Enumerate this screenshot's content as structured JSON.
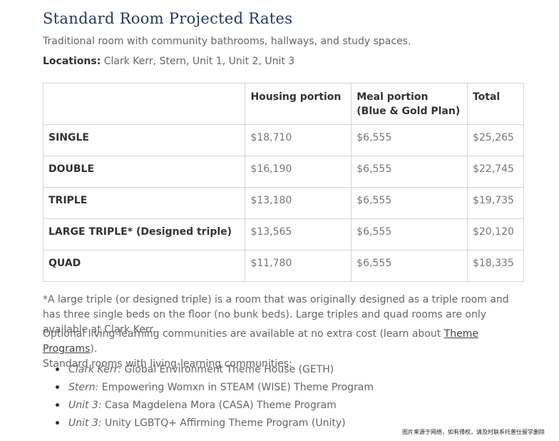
{
  "title": "Standard Room Projected Rates",
  "subtitle": "Traditional room with community bathrooms, hallways, and study spaces.",
  "locations": {
    "label": "Locations:",
    "value": "Clark Kerr, Stern, Unit 1, Unit 2, Unit 3"
  },
  "table": {
    "headers": [
      "",
      "Housing portion",
      "Meal portion\n(Blue & Gold Plan)",
      "Total"
    ],
    "header_meal_line1": "Meal portion",
    "header_meal_line2": "(Blue & Gold Plan)",
    "rows": [
      {
        "room": "SINGLE",
        "housing": "$18,710",
        "meal": "$6,555",
        "total": "$25,265"
      },
      {
        "room": "DOUBLE",
        "housing": "$16,190",
        "meal": "$6,555",
        "total": "$22,745"
      },
      {
        "room": "TRIPLE",
        "housing": "$13,180",
        "meal": "$6,555",
        "total": "$19,735"
      },
      {
        "room": "LARGE TRIPLE* (Designed triple)",
        "housing": "$13,565",
        "meal": "$6,555",
        "total": "$20,120"
      },
      {
        "room": "QUAD",
        "housing": "$11,780",
        "meal": "$6,555",
        "total": "$18,335"
      }
    ]
  },
  "note": "*A large triple (or designed triple) is a room that was originally designed as a triple room and has three single beds on the floor (no bunk beds). Large triples and quad rooms are only available at Clark Kerr.",
  "optional": {
    "before_link": "Optional living-learning communities are available at no extra cost (learn about ",
    "link_text": "Theme Programs",
    "after_link": ").",
    "line2": "Standard rooms with living-learning communities:"
  },
  "communities": [
    {
      "location": "Clark Kerr:",
      "program": "Global Environment Theme House (GETH)"
    },
    {
      "location": "Stern:",
      "program": "Empowering Womxn in STEAM (WISE) Theme Program"
    },
    {
      "location": "Unit 3:",
      "program": "Casa Magdelena Mora (CASA) Theme Program"
    },
    {
      "location": "Unit 3:",
      "program": "Unity LGBTQ+ Affirming Theme Program (Unity)"
    }
  ],
  "watermark": "图片来源于网络，如有侵权，请及时联系托普仕留学删除"
}
